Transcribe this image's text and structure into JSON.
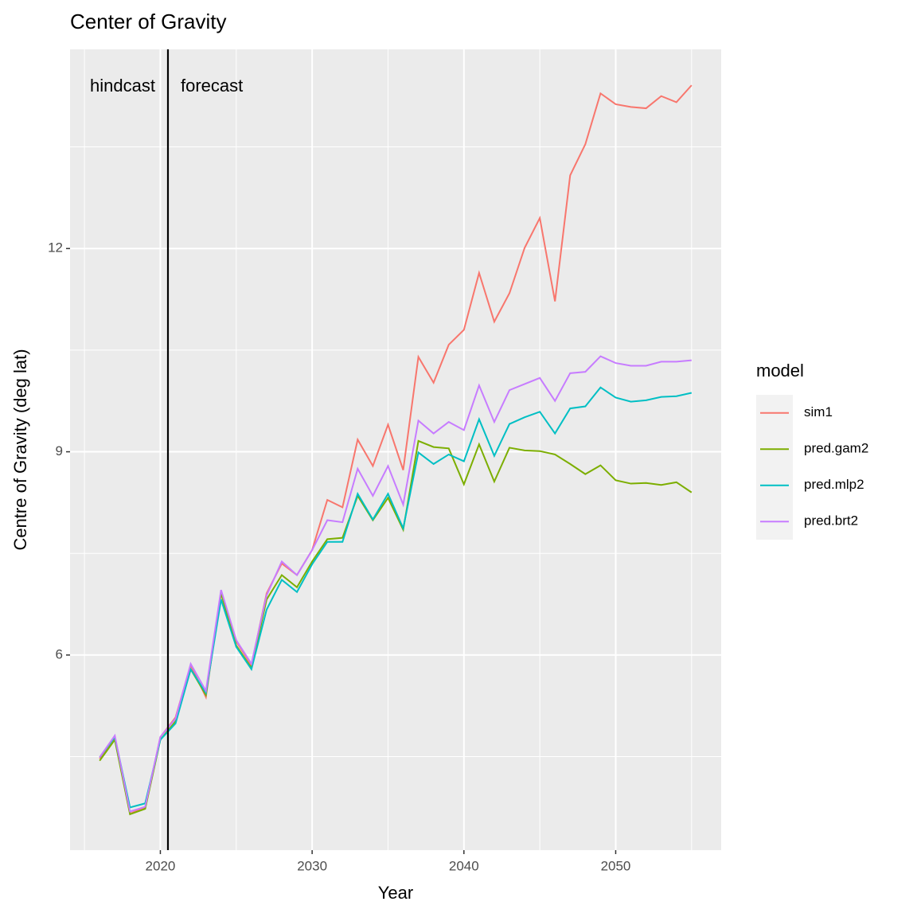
{
  "chart_data": {
    "type": "line",
    "title": "Center of Gravity",
    "x_label": "Year",
    "y_label": "Centre of Gravity (deg lat)",
    "legend_title": "model",
    "legend_position": "right",
    "grid": true,
    "vline": 2020.5,
    "annotations": [
      "hindcast",
      "forecast"
    ],
    "x": [
      2016,
      2017,
      2018,
      2019,
      2020,
      2021,
      2022,
      2023,
      2024,
      2025,
      2026,
      2027,
      2028,
      2029,
      2030,
      2031,
      2032,
      2033,
      2034,
      2035,
      2036,
      2037,
      2038,
      2039,
      2040,
      2041,
      2042,
      2043,
      2044,
      2045,
      2046,
      2047,
      2048,
      2049,
      2050,
      2051,
      2052,
      2053,
      2054,
      2055
    ],
    "xlim": [
      2014.05,
      2056.95
    ],
    "xticks": [
      2020,
      2030,
      2040,
      2050
    ],
    "ylim": [
      3.12,
      14.94
    ],
    "yticks": [
      6,
      9,
      12
    ],
    "series": [
      {
        "name": "sim1",
        "color": "#F8766D",
        "values": [
          4.47,
          4.79,
          3.66,
          3.75,
          4.79,
          5.08,
          5.85,
          5.38,
          6.94,
          6.2,
          5.85,
          6.91,
          7.35,
          7.18,
          7.55,
          8.29,
          8.18,
          9.18,
          8.79,
          9.4,
          8.73,
          10.4,
          10.02,
          10.58,
          10.8,
          11.64,
          10.92,
          11.34,
          12.01,
          12.45,
          11.22,
          13.08,
          13.54,
          14.29,
          14.13,
          14.09,
          14.07,
          14.25,
          14.16,
          14.41
        ]
      },
      {
        "name": "pred.gam2",
        "color": "#7CAE00",
        "values": [
          4.44,
          4.75,
          3.65,
          3.73,
          4.75,
          5.02,
          5.79,
          5.41,
          6.91,
          6.14,
          5.81,
          6.82,
          7.18,
          7.0,
          7.38,
          7.71,
          7.73,
          8.35,
          7.99,
          8.32,
          7.85,
          9.16,
          9.07,
          9.05,
          8.52,
          9.11,
          8.56,
          9.06,
          9.02,
          9.01,
          8.96,
          8.82,
          8.67,
          8.8,
          8.58,
          8.53,
          8.54,
          8.51,
          8.55,
          8.4
        ]
      },
      {
        "name": "pred.mlp2",
        "color": "#00BFC4",
        "values": [
          4.49,
          4.79,
          3.75,
          3.81,
          4.75,
          4.99,
          5.79,
          5.44,
          6.82,
          6.12,
          5.79,
          6.67,
          7.11,
          6.93,
          7.34,
          7.67,
          7.67,
          8.38,
          8.0,
          8.38,
          7.87,
          8.99,
          8.82,
          8.96,
          8.86,
          9.48,
          8.94,
          9.41,
          9.51,
          9.59,
          9.27,
          9.64,
          9.67,
          9.95,
          9.8,
          9.74,
          9.76,
          9.81,
          9.82,
          9.87
        ]
      },
      {
        "name": "pred.brt2",
        "color": "#C77CFF",
        "values": [
          4.49,
          4.81,
          3.69,
          3.76,
          4.79,
          5.06,
          5.87,
          5.47,
          6.96,
          6.22,
          5.87,
          6.88,
          7.38,
          7.18,
          7.55,
          7.99,
          7.96,
          8.75,
          8.35,
          8.79,
          8.22,
          9.46,
          9.27,
          9.44,
          9.32,
          9.98,
          9.44,
          9.91,
          10.0,
          10.09,
          9.75,
          10.16,
          10.18,
          10.41,
          10.31,
          10.27,
          10.27,
          10.33,
          10.33,
          10.35
        ]
      }
    ]
  }
}
